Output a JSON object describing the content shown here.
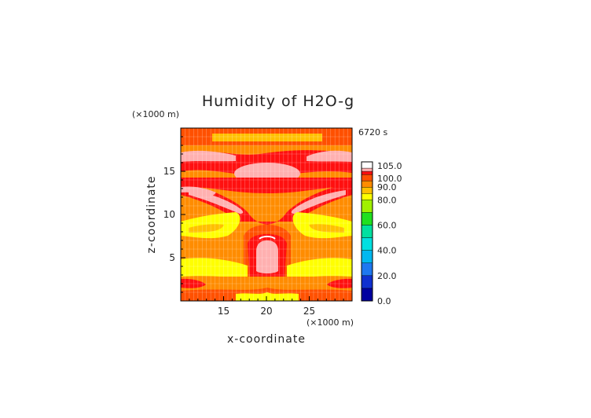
{
  "chart_data": {
    "type": "heatmap",
    "title": "Humidity of H2O-g",
    "xlabel": "x-coordinate",
    "ylabel": "z-coordinate",
    "x_unit": "(×1000 m)",
    "z_unit": "(×1000 m)",
    "time_label": "6720 s",
    "xlim": [
      10,
      30
    ],
    "ylim": [
      0,
      20
    ],
    "x_ticks": [
      15,
      20,
      25
    ],
    "y_ticks": [
      5,
      10,
      15
    ],
    "grid": true,
    "legend": "right",
    "colorbar_labels": [
      "105.0",
      "100.0",
      "90.0",
      "80.0",
      "60.0",
      "40.0",
      "20.0",
      "0.0"
    ],
    "colorbar_levels": [
      {
        "min": 0,
        "max": 10,
        "color": "#0000a0"
      },
      {
        "min": 10,
        "max": 20,
        "color": "#1030d0"
      },
      {
        "min": 20,
        "max": 30,
        "color": "#1e78f0"
      },
      {
        "min": 30,
        "max": 40,
        "color": "#00b8f0"
      },
      {
        "min": 40,
        "max": 50,
        "color": "#00e0e0"
      },
      {
        "min": 50,
        "max": 60,
        "color": "#00e0a0"
      },
      {
        "min": 60,
        "max": 70,
        "color": "#20e020"
      },
      {
        "min": 70,
        "max": 80,
        "color": "#a0f000"
      },
      {
        "min": 80,
        "max": 85,
        "color": "#ffff00"
      },
      {
        "min": 85,
        "max": 90,
        "color": "#ffc000"
      },
      {
        "min": 90,
        "max": 95,
        "color": "#ff8c00"
      },
      {
        "min": 95,
        "max": 100,
        "color": "#ff5000"
      },
      {
        "min": 100,
        "max": 102.5,
        "color": "#ff1010"
      },
      {
        "min": 102.5,
        "max": 105,
        "color": "#ffb0b0"
      },
      {
        "min": 105,
        "max": 110,
        "color": "#ffffff"
      }
    ],
    "field_regions": [
      {
        "label": "background",
        "value": 92,
        "color": "#ff8c00"
      },
      {
        "label": "top band",
        "value": 96,
        "color": "#ff5000"
      },
      {
        "label": "upper supersaturated streaks",
        "value": 104,
        "color": "#ffb0b0"
      },
      {
        "label": "central anvil",
        "value": 104,
        "color": "#ffb0b0"
      },
      {
        "label": "mid-level saturated wedge",
        "value": 101,
        "color": "#ff1010"
      },
      {
        "label": "mid-level wings",
        "value": 104,
        "color": "#ffb0b0"
      },
      {
        "label": "dry flanks (z≈7-9)",
        "value": 82,
        "color": "#ffff00"
      },
      {
        "label": "updraft core",
        "value": 104,
        "color": "#ffb0b0"
      },
      {
        "label": "lower dry layer",
        "value": 82,
        "color": "#ffff00"
      },
      {
        "label": "surface layer",
        "value": 96,
        "color": "#ff5000"
      }
    ]
  }
}
